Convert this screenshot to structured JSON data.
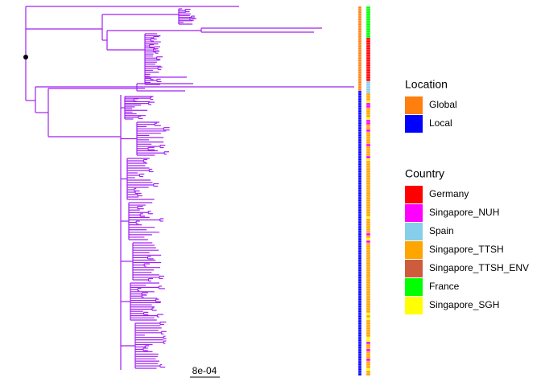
{
  "chart_data": {
    "type": "tree",
    "scale_label": "8e-04",
    "legends": [
      {
        "title": "Location",
        "entries": [
          {
            "name": "Global",
            "color": "#ff7f0e"
          },
          {
            "name": "Local",
            "color": "#0000ff"
          }
        ]
      },
      {
        "title": "Country",
        "entries": [
          {
            "name": "Germany",
            "color": "#ff0000"
          },
          {
            "name": "Singapore_NUH",
            "color": "#ff00ff"
          },
          {
            "name": "Spain",
            "color": "#87ceeb"
          },
          {
            "name": "Singapore_TTSH",
            "color": "#ffa500"
          },
          {
            "name": "Singapore_TTSH_ENV",
            "color": "#cd5c3c"
          },
          {
            "name": "France",
            "color": "#00ff00"
          },
          {
            "name": "Singapore_SGH",
            "color": "#ffff00"
          }
        ]
      }
    ],
    "branch_color": "#a020f0"
  }
}
